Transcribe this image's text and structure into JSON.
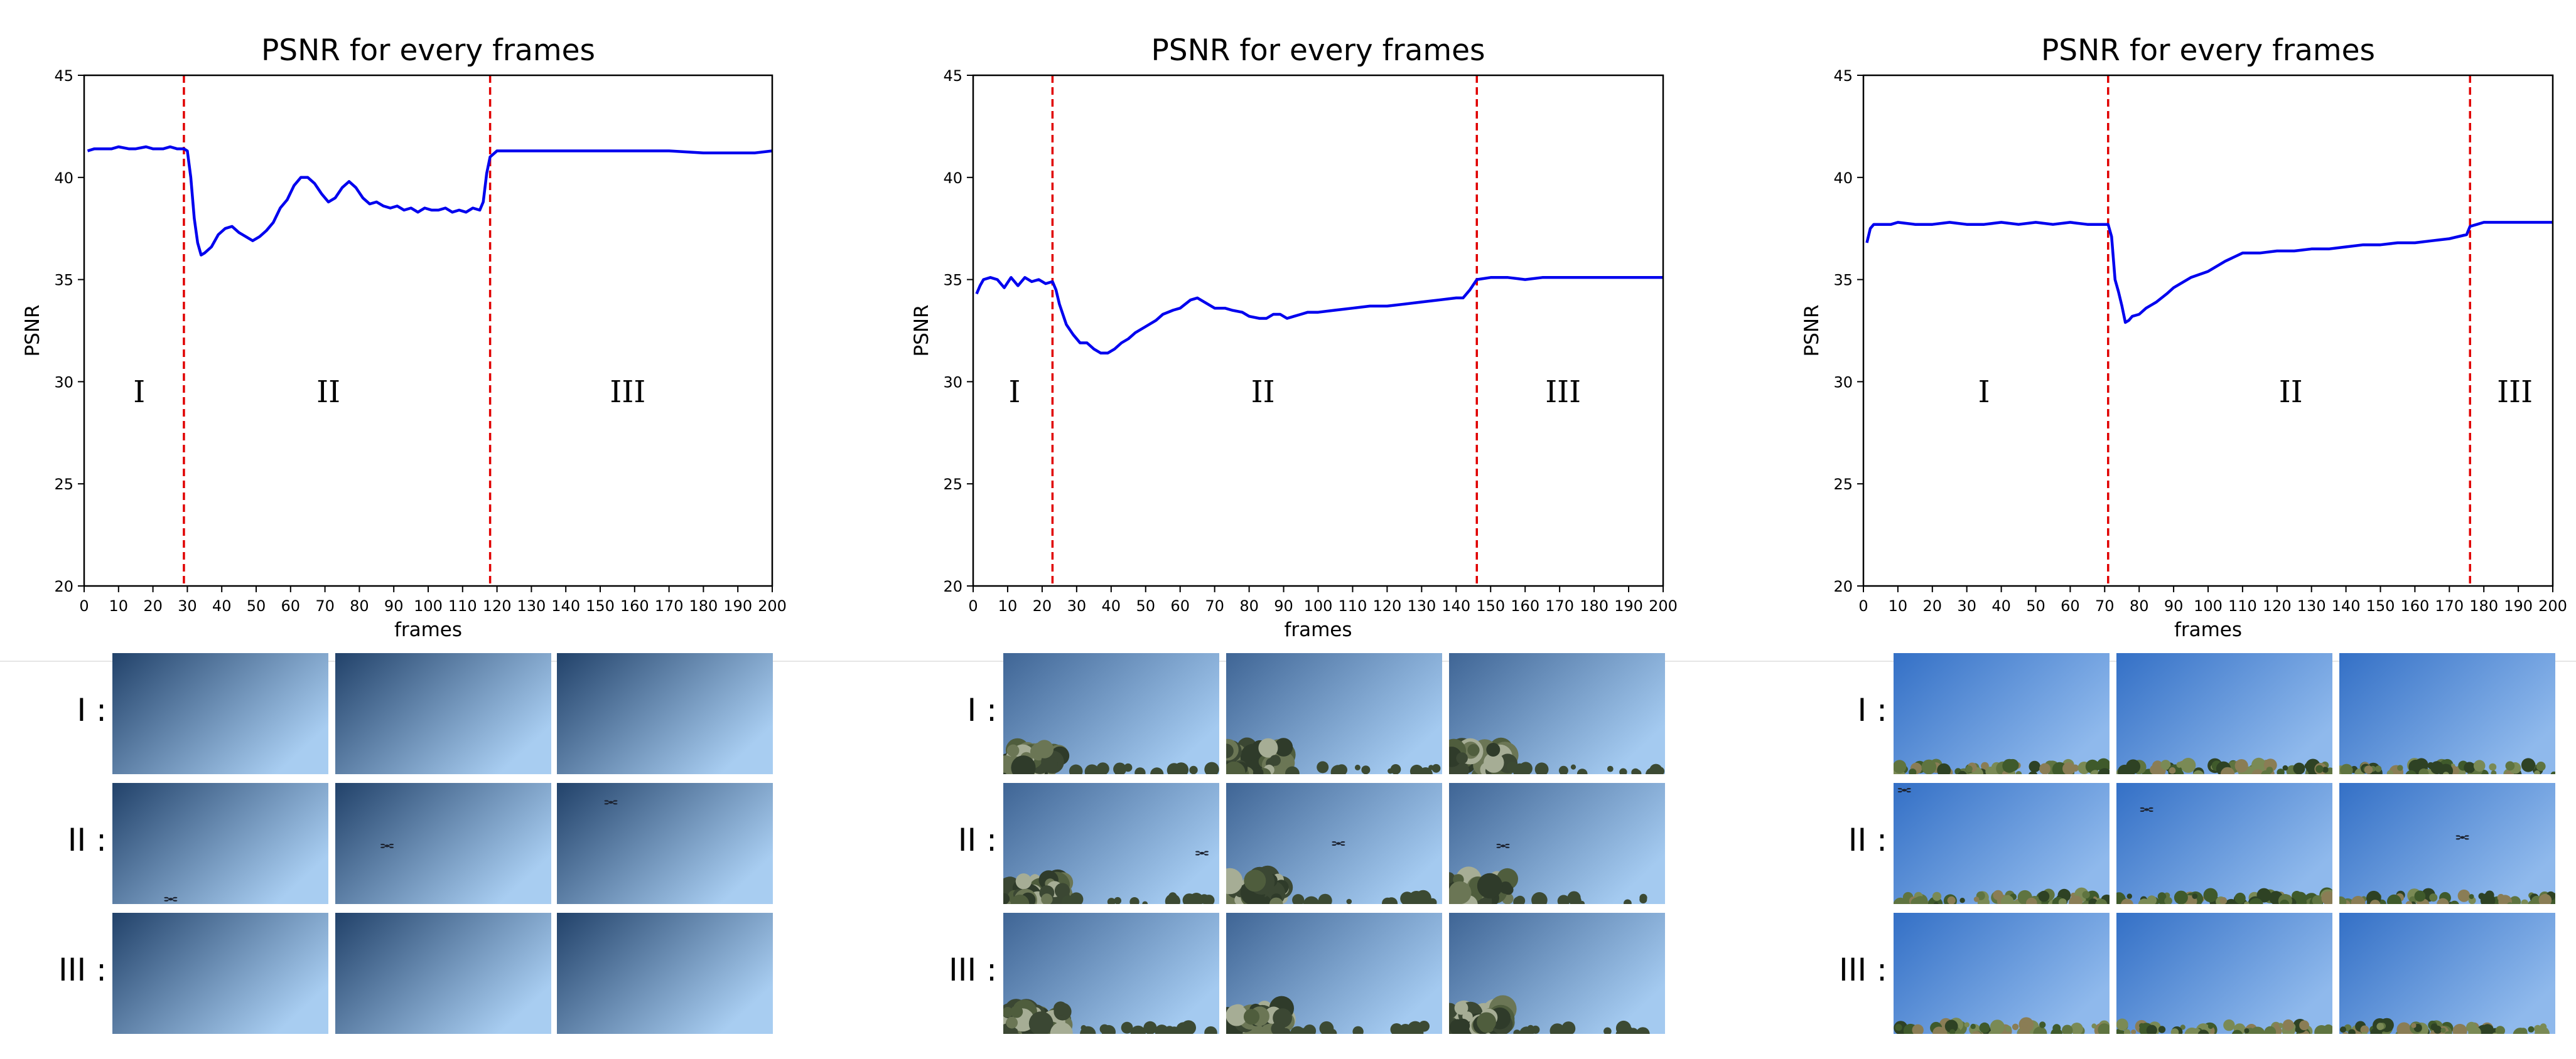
{
  "chart_data": [
    {
      "type": "line",
      "title": "PSNR for every frames",
      "xlabel": "frames",
      "ylabel": "PSNR",
      "xlim": [
        0,
        200
      ],
      "ylim": [
        20,
        45
      ],
      "xticks": [
        0,
        10,
        20,
        30,
        40,
        50,
        60,
        70,
        80,
        90,
        100,
        110,
        120,
        130,
        140,
        150,
        160,
        170,
        180,
        190,
        200
      ],
      "yticks": [
        20,
        25,
        30,
        35,
        40,
        45
      ],
      "line_color": "#0000ee",
      "boundary_color": "#e00000",
      "grid": false,
      "boundaries": [
        29,
        118
      ],
      "segments": [
        {
          "label": "I",
          "x": 16
        },
        {
          "label": "II",
          "x": 71
        },
        {
          "label": "III",
          "x": 158
        }
      ],
      "series": [
        {
          "x": [
            1,
            3,
            5,
            8,
            10,
            13,
            15,
            18,
            20,
            23,
            25,
            27,
            29,
            30,
            31,
            32,
            33,
            34,
            35,
            37,
            39,
            41,
            43,
            45,
            47,
            49,
            51,
            53,
            55,
            57,
            59,
            61,
            63,
            65,
            67,
            69,
            71,
            73,
            75,
            77,
            79,
            81,
            83,
            85,
            87,
            89,
            91,
            93,
            95,
            97,
            99,
            101,
            103,
            105,
            107,
            109,
            111,
            113,
            115,
            116,
            117,
            118,
            120,
            122,
            124,
            130,
            140,
            150,
            160,
            170,
            180,
            185,
            190,
            195,
            200
          ],
          "y": [
            41.3,
            41.4,
            41.4,
            41.4,
            41.5,
            41.4,
            41.4,
            41.5,
            41.4,
            41.4,
            41.5,
            41.4,
            41.4,
            41.3,
            40.0,
            38.0,
            36.8,
            36.2,
            36.3,
            36.6,
            37.2,
            37.5,
            37.6,
            37.3,
            37.1,
            36.9,
            37.1,
            37.4,
            37.8,
            38.5,
            38.9,
            39.6,
            40.0,
            40.0,
            39.7,
            39.2,
            38.8,
            39.0,
            39.5,
            39.8,
            39.5,
            39.0,
            38.7,
            38.8,
            38.6,
            38.5,
            38.6,
            38.4,
            38.5,
            38.3,
            38.5,
            38.4,
            38.4,
            38.5,
            38.3,
            38.4,
            38.3,
            38.5,
            38.4,
            38.8,
            40.2,
            41.0,
            41.3,
            41.3,
            41.3,
            41.3,
            41.3,
            41.3,
            41.3,
            41.3,
            41.2,
            41.2,
            41.2,
            41.2,
            41.3
          ]
        }
      ]
    },
    {
      "type": "line",
      "title": "PSNR for every frames",
      "xlabel": "frames",
      "ylabel": "PSNR",
      "xlim": [
        0,
        200
      ],
      "ylim": [
        20,
        45
      ],
      "xticks": [
        0,
        10,
        20,
        30,
        40,
        50,
        60,
        70,
        80,
        90,
        100,
        110,
        120,
        130,
        140,
        150,
        160,
        170,
        180,
        190,
        200
      ],
      "yticks": [
        20,
        25,
        30,
        35,
        40,
        45
      ],
      "line_color": "#0000ee",
      "boundary_color": "#e00000",
      "grid": false,
      "boundaries": [
        23,
        146
      ],
      "segments": [
        {
          "label": "I",
          "x": 12
        },
        {
          "label": "II",
          "x": 84
        },
        {
          "label": "III",
          "x": 171
        }
      ],
      "series": [
        {
          "x": [
            1,
            2,
            3,
            5,
            7,
            9,
            11,
            13,
            15,
            17,
            19,
            21,
            23,
            24,
            25,
            27,
            29,
            31,
            33,
            35,
            37,
            39,
            41,
            43,
            45,
            47,
            50,
            53,
            55,
            58,
            60,
            63,
            65,
            67,
            70,
            73,
            75,
            78,
            80,
            83,
            85,
            87,
            89,
            91,
            93,
            95,
            97,
            100,
            105,
            110,
            115,
            120,
            125,
            130,
            135,
            140,
            142,
            144,
            146,
            150,
            155,
            160,
            165,
            170,
            175,
            180,
            190,
            200
          ],
          "y": [
            34.3,
            34.7,
            35.0,
            35.1,
            35.0,
            34.6,
            35.1,
            34.7,
            35.1,
            34.9,
            35.0,
            34.8,
            34.9,
            34.5,
            33.8,
            32.8,
            32.3,
            31.9,
            31.9,
            31.6,
            31.4,
            31.4,
            31.6,
            31.9,
            32.1,
            32.4,
            32.7,
            33.0,
            33.3,
            33.5,
            33.6,
            34.0,
            34.1,
            33.9,
            33.6,
            33.6,
            33.5,
            33.4,
            33.2,
            33.1,
            33.1,
            33.3,
            33.3,
            33.1,
            33.2,
            33.3,
            33.4,
            33.4,
            33.5,
            33.6,
            33.7,
            33.7,
            33.8,
            33.9,
            34.0,
            34.1,
            34.1,
            34.5,
            35.0,
            35.1,
            35.1,
            35.0,
            35.1,
            35.1,
            35.1,
            35.1,
            35.1,
            35.1
          ]
        }
      ]
    },
    {
      "type": "line",
      "title": "PSNR for every frames",
      "xlabel": "frames",
      "ylabel": "PSNR",
      "xlim": [
        0,
        200
      ],
      "ylim": [
        20,
        45
      ],
      "xticks": [
        0,
        10,
        20,
        30,
        40,
        50,
        60,
        70,
        80,
        90,
        100,
        110,
        120,
        130,
        140,
        150,
        160,
        170,
        180,
        190,
        200
      ],
      "yticks": [
        20,
        25,
        30,
        35,
        40,
        45
      ],
      "line_color": "#0000ee",
      "boundary_color": "#e00000",
      "grid": false,
      "boundaries": [
        71,
        176
      ],
      "segments": [
        {
          "label": "I",
          "x": 35
        },
        {
          "label": "II",
          "x": 124
        },
        {
          "label": "III",
          "x": 189
        }
      ],
      "series": [
        {
          "x": [
            1,
            2,
            3,
            5,
            8,
            10,
            15,
            20,
            25,
            30,
            35,
            40,
            45,
            50,
            55,
            60,
            65,
            70,
            71,
            72,
            73,
            74,
            75,
            76,
            77,
            78,
            80,
            82,
            85,
            88,
            90,
            95,
            100,
            105,
            110,
            112,
            115,
            120,
            125,
            130,
            135,
            140,
            145,
            150,
            155,
            160,
            165,
            170,
            175,
            176,
            178,
            180,
            185,
            190,
            195,
            200
          ],
          "y": [
            36.8,
            37.5,
            37.7,
            37.7,
            37.7,
            37.8,
            37.7,
            37.7,
            37.8,
            37.7,
            37.7,
            37.8,
            37.7,
            37.8,
            37.7,
            37.8,
            37.7,
            37.7,
            37.7,
            37.1,
            35.0,
            34.4,
            33.7,
            32.9,
            33.0,
            33.2,
            33.3,
            33.6,
            33.9,
            34.3,
            34.6,
            35.1,
            35.4,
            35.9,
            36.3,
            36.3,
            36.3,
            36.4,
            36.4,
            36.5,
            36.5,
            36.6,
            36.7,
            36.7,
            36.8,
            36.8,
            36.9,
            37.0,
            37.2,
            37.6,
            37.7,
            37.8,
            37.8,
            37.8,
            37.8,
            37.8
          ]
        }
      ]
    }
  ],
  "thumbnail_rows": [
    {
      "label": "I :"
    },
    {
      "label": "II :"
    },
    {
      "label": "III :"
    }
  ],
  "thumbnail_styles": [
    {
      "sky_dark": "#2a4a6e",
      "sky_light": "#a3c9ee",
      "horizon": "none",
      "drones": [
        [],
        [
          0.25,
          0.95
        ],
        []
      ],
      "drones_row2": [
        [
          0.25,
          0.95
        ],
        [
          0.25,
          0.55
        ],
        [
          0.25,
          0.15
        ]
      ]
    },
    {
      "sky_dark": "#436a99",
      "sky_light": "#9fc6ef",
      "horizon": "trees"
    },
    {
      "sky_dark": "#3a72c4",
      "sky_light": "#8db7ea",
      "horizon": "shrubs"
    }
  ],
  "drone_positions": [
    [
      [
        0.27,
        0.96
      ],
      [
        0.24,
        0.52
      ],
      [
        0.25,
        0.16
      ]
    ],
    [
      [
        0.92,
        0.58
      ],
      [
        0.52,
        0.5
      ],
      [
        0.25,
        0.52
      ]
    ],
    [
      [
        0.05,
        0.06
      ],
      [
        0.14,
        0.22
      ],
      [
        0.57,
        0.45
      ]
    ]
  ],
  "colors": {
    "line": "#0000ee",
    "boundary": "#e00000",
    "axis": "#000000",
    "divider": "#e6e6e6"
  }
}
